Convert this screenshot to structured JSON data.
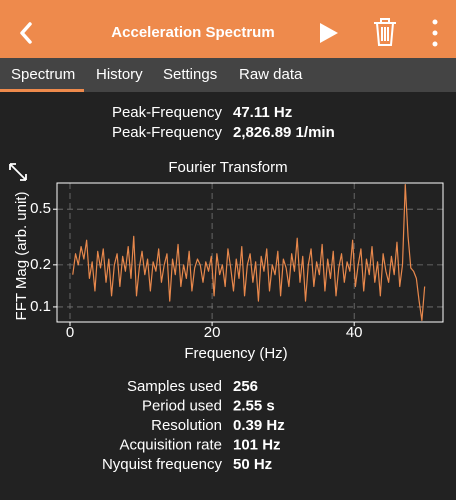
{
  "header": {
    "title": "Acceleration Spectrum"
  },
  "tabs": [
    "Spectrum",
    "History",
    "Settings",
    "Raw data"
  ],
  "peak": [
    {
      "label": "Peak-Frequency",
      "value": "47.11 Hz"
    },
    {
      "label": "Peak-Frequency",
      "value": "2,826.89 1/min"
    }
  ],
  "chart_data": {
    "type": "line",
    "title": "Fourier Transform",
    "x_label": "Frequency (Hz)",
    "y_label": "FFT Mag (arb. unit)",
    "color": "#e8884c",
    "log_y": true,
    "grid": true,
    "xlim": [
      -1.83,
      52.5
    ],
    "ylim": [
      0.078,
      0.77
    ],
    "xticks": [
      0,
      20,
      40
    ],
    "yticks": [
      0.5,
      0.2,
      0.1
    ],
    "x": [
      0.39,
      0.78,
      1.17,
      1.56,
      1.95,
      2.34,
      2.73,
      3.12,
      3.51,
      3.9,
      4.29,
      4.68,
      5.07,
      5.46,
      5.85,
      6.24,
      6.63,
      7.02,
      7.41,
      7.8,
      8.19,
      8.58,
      8.97,
      9.36,
      9.75,
      10.14,
      10.53,
      10.92,
      11.31,
      11.7,
      12.09,
      12.48,
      12.87,
      13.26,
      13.65,
      14.04,
      14.43,
      14.82,
      15.21,
      15.6,
      15.99,
      16.38,
      16.77,
      17.16,
      17.55,
      17.94,
      18.33,
      18.72,
      19.11,
      19.5,
      19.89,
      20.28,
      20.67,
      21.06,
      21.45,
      21.84,
      22.23,
      22.62,
      23.01,
      23.4,
      23.79,
      24.18,
      24.57,
      24.96,
      25.35,
      25.74,
      26.13,
      26.52,
      26.91,
      27.3,
      27.69,
      28.08,
      28.47,
      28.86,
      29.25,
      29.64,
      30.03,
      30.42,
      30.81,
      31.2,
      31.59,
      31.98,
      32.37,
      32.76,
      33.15,
      33.54,
      33.93,
      34.32,
      34.71,
      35.1,
      35.49,
      35.88,
      36.27,
      36.66,
      37.05,
      37.44,
      37.83,
      38.22,
      38.61,
      39,
      39.39,
      39.78,
      40.17,
      40.56,
      40.95,
      41.34,
      41.73,
      42.12,
      42.51,
      42.9,
      43.29,
      43.68,
      44.07,
      44.46,
      44.85,
      45.24,
      45.63,
      46.02,
      46.41,
      46.8,
      47.19,
      47.58,
      47.97,
      48.36,
      48.75,
      49.14,
      49.53,
      49.92
    ],
    "values": [
      0.17,
      0.24,
      0.2,
      0.27,
      0.22,
      0.3,
      0.16,
      0.21,
      0.13,
      0.25,
      0.19,
      0.26,
      0.15,
      0.22,
      0.12,
      0.2,
      0.24,
      0.14,
      0.23,
      0.18,
      0.27,
      0.16,
      0.32,
      0.12,
      0.19,
      0.25,
      0.17,
      0.22,
      0.13,
      0.21,
      0.18,
      0.26,
      0.15,
      0.2,
      0.24,
      0.11,
      0.22,
      0.17,
      0.28,
      0.14,
      0.2,
      0.16,
      0.25,
      0.13,
      0.19,
      0.22,
      0.2,
      0.15,
      0.21,
      0.18,
      0.23,
      0.12,
      0.24,
      0.17,
      0.2,
      0.14,
      0.26,
      0.19,
      0.13,
      0.22,
      0.16,
      0.27,
      0.12,
      0.2,
      0.24,
      0.15,
      0.21,
      0.11,
      0.23,
      0.18,
      0.26,
      0.13,
      0.2,
      0.17,
      0.25,
      0.12,
      0.22,
      0.19,
      0.14,
      0.24,
      0.18,
      0.31,
      0.15,
      0.23,
      0.11,
      0.2,
      0.26,
      0.14,
      0.21,
      0.17,
      0.28,
      0.13,
      0.22,
      0.16,
      0.25,
      0.12,
      0.19,
      0.24,
      0.15,
      0.21,
      0.18,
      0.3,
      0.14,
      0.2,
      0.26,
      0.13,
      0.22,
      0.17,
      0.27,
      0.15,
      0.21,
      0.12,
      0.24,
      0.18,
      0.15,
      0.23,
      0.17,
      0.29,
      0.14,
      0.2,
      0.75,
      0.32,
      0.19,
      0.18,
      0.16,
      0.11,
      0.08,
      0.14
    ]
  },
  "stats": [
    {
      "label": "Samples used",
      "value": "256"
    },
    {
      "label": "Period used",
      "value": "2.55 s"
    },
    {
      "label": "Resolution",
      "value": "0.39 Hz"
    },
    {
      "label": "Acquisition rate",
      "value": "101 Hz"
    },
    {
      "label": "Nyquist frequency",
      "value": "50 Hz"
    }
  ]
}
